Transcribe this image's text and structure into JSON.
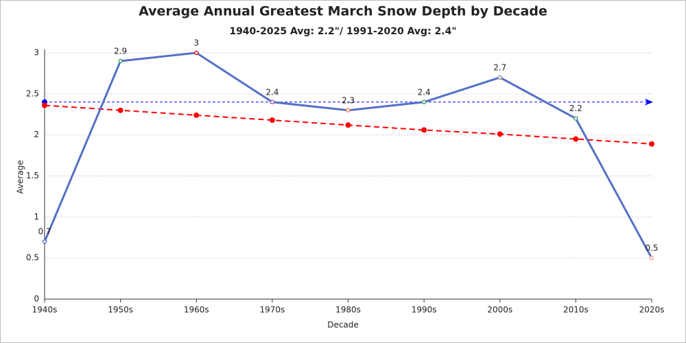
{
  "chart_data": {
    "type": "line",
    "title": "Average Annual Greatest March Snow Depth by Decade",
    "subtitle": "1940-2025 Avg: 2.2\"/ 1991-2020 Avg: 2.4\"",
    "x_label": "Decade",
    "y_label": "Average",
    "categories": [
      "1940s",
      "1950s",
      "1960s",
      "1970s",
      "1980s",
      "1990s",
      "2000s",
      "2010s",
      "2020s"
    ],
    "values": [
      0.7,
      2.9,
      3,
      2.4,
      2.3,
      2.4,
      2.7,
      2.2,
      0.5
    ],
    "color": "#5470c6",
    "point_colors": [
      "#5470c6",
      "#3ba272",
      "#ee1c25",
      "#9a60b4",
      "#fc8452",
      "#3ba272",
      "#999999",
      "#3ba272",
      "#f4a6a6"
    ],
    "trend": {
      "values": [
        2.36,
        2.3,
        2.24,
        2.18,
        2.12,
        2.06,
        2.01,
        1.95,
        1.89
      ],
      "color": "#ff0000"
    },
    "mark_line": {
      "value": 2.4,
      "color": "#0000ff"
    },
    "ylim": [
      0,
      3
    ],
    "yticks": [
      0,
      0.5,
      1,
      1.5,
      2,
      2.5,
      3
    ],
    "grid": true
  }
}
